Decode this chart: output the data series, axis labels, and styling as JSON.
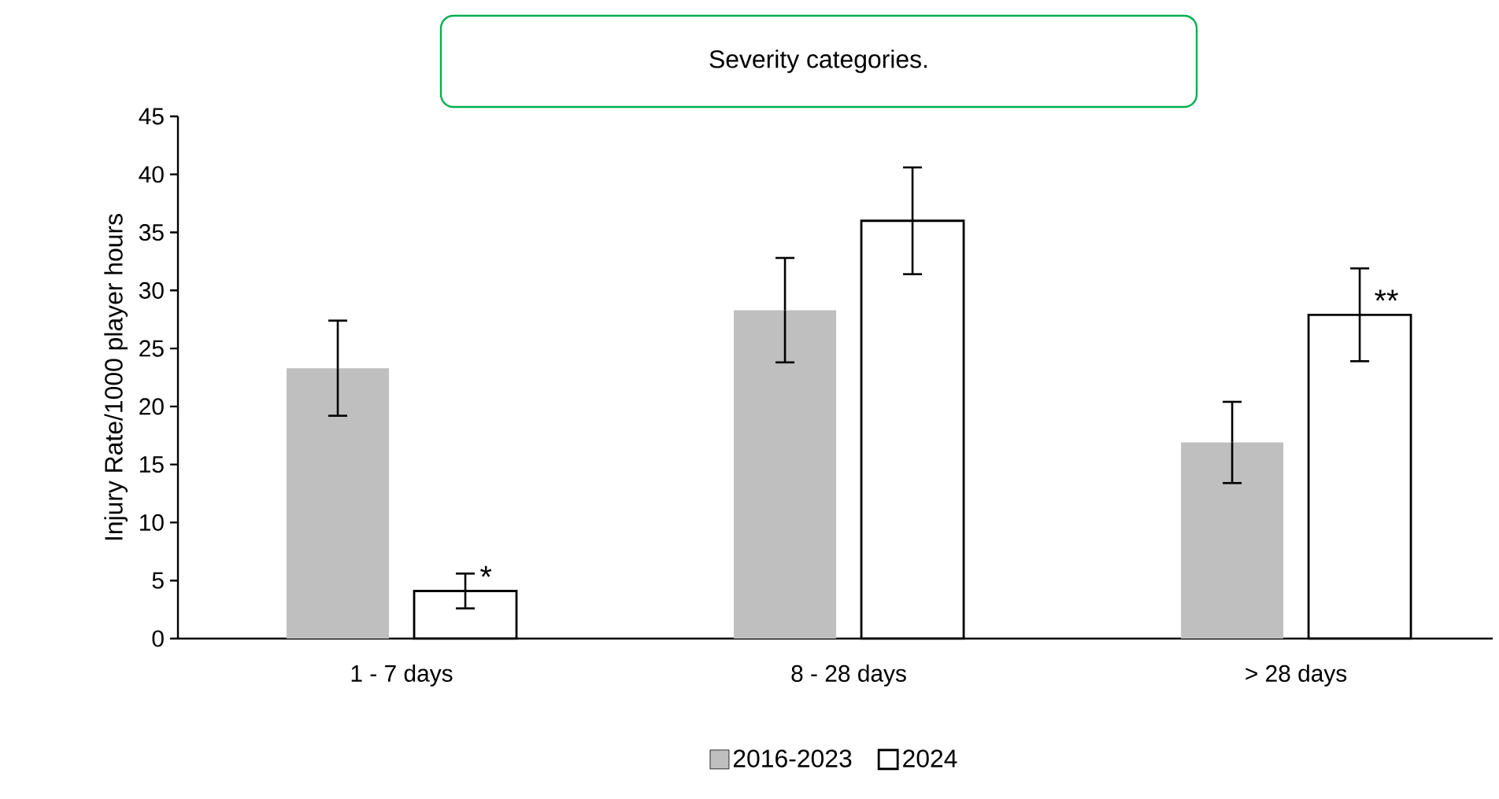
{
  "chart_data": {
    "type": "bar",
    "title": "Severity categories.",
    "ylabel": "Injury Rate/1000 player hours",
    "categories": [
      "1 - 7 days",
      "8 - 28 days",
      "> 28 days"
    ],
    "series": [
      {
        "name": "2016-2023",
        "color": "#bfbfbf",
        "values": [
          23.3,
          28.3,
          16.9
        ],
        "errors": [
          4.1,
          4.5,
          3.5
        ]
      },
      {
        "name": "2024",
        "color": "#ffffff",
        "values": [
          4.1,
          36.0,
          27.9
        ],
        "errors": [
          1.5,
          4.6,
          4.0
        ]
      }
    ],
    "ylim": [
      0,
      45
    ],
    "yticks": [
      0,
      5,
      10,
      15,
      20,
      25,
      30,
      35,
      40,
      45
    ],
    "legend": "bottom",
    "annotations": [
      "*",
      "**"
    ]
  }
}
